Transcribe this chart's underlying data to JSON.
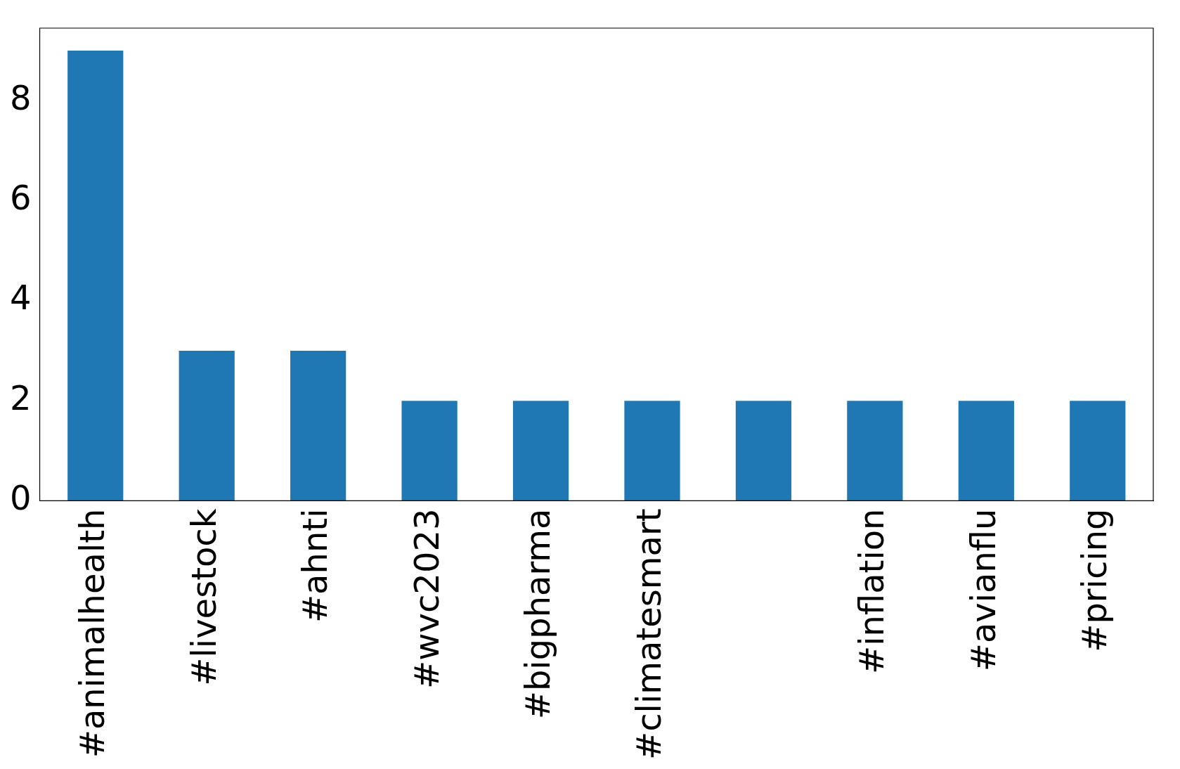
{
  "chart_data": {
    "type": "bar",
    "categories": [
      "#animalhealth",
      "#livestock",
      "#ahnti",
      "#wvc2023",
      "#bigpharma",
      "#climatesmart",
      null,
      "#inflation",
      "#avianflu",
      "#pricing"
    ],
    "values": [
      9,
      3,
      3,
      2,
      2,
      2,
      2,
      2,
      2,
      2
    ],
    "color": "#1f77b4",
    "ylim": [
      0,
      9.45
    ],
    "yticks": [
      0,
      2,
      4,
      6,
      8
    ],
    "grid": false,
    "legend": false
  }
}
